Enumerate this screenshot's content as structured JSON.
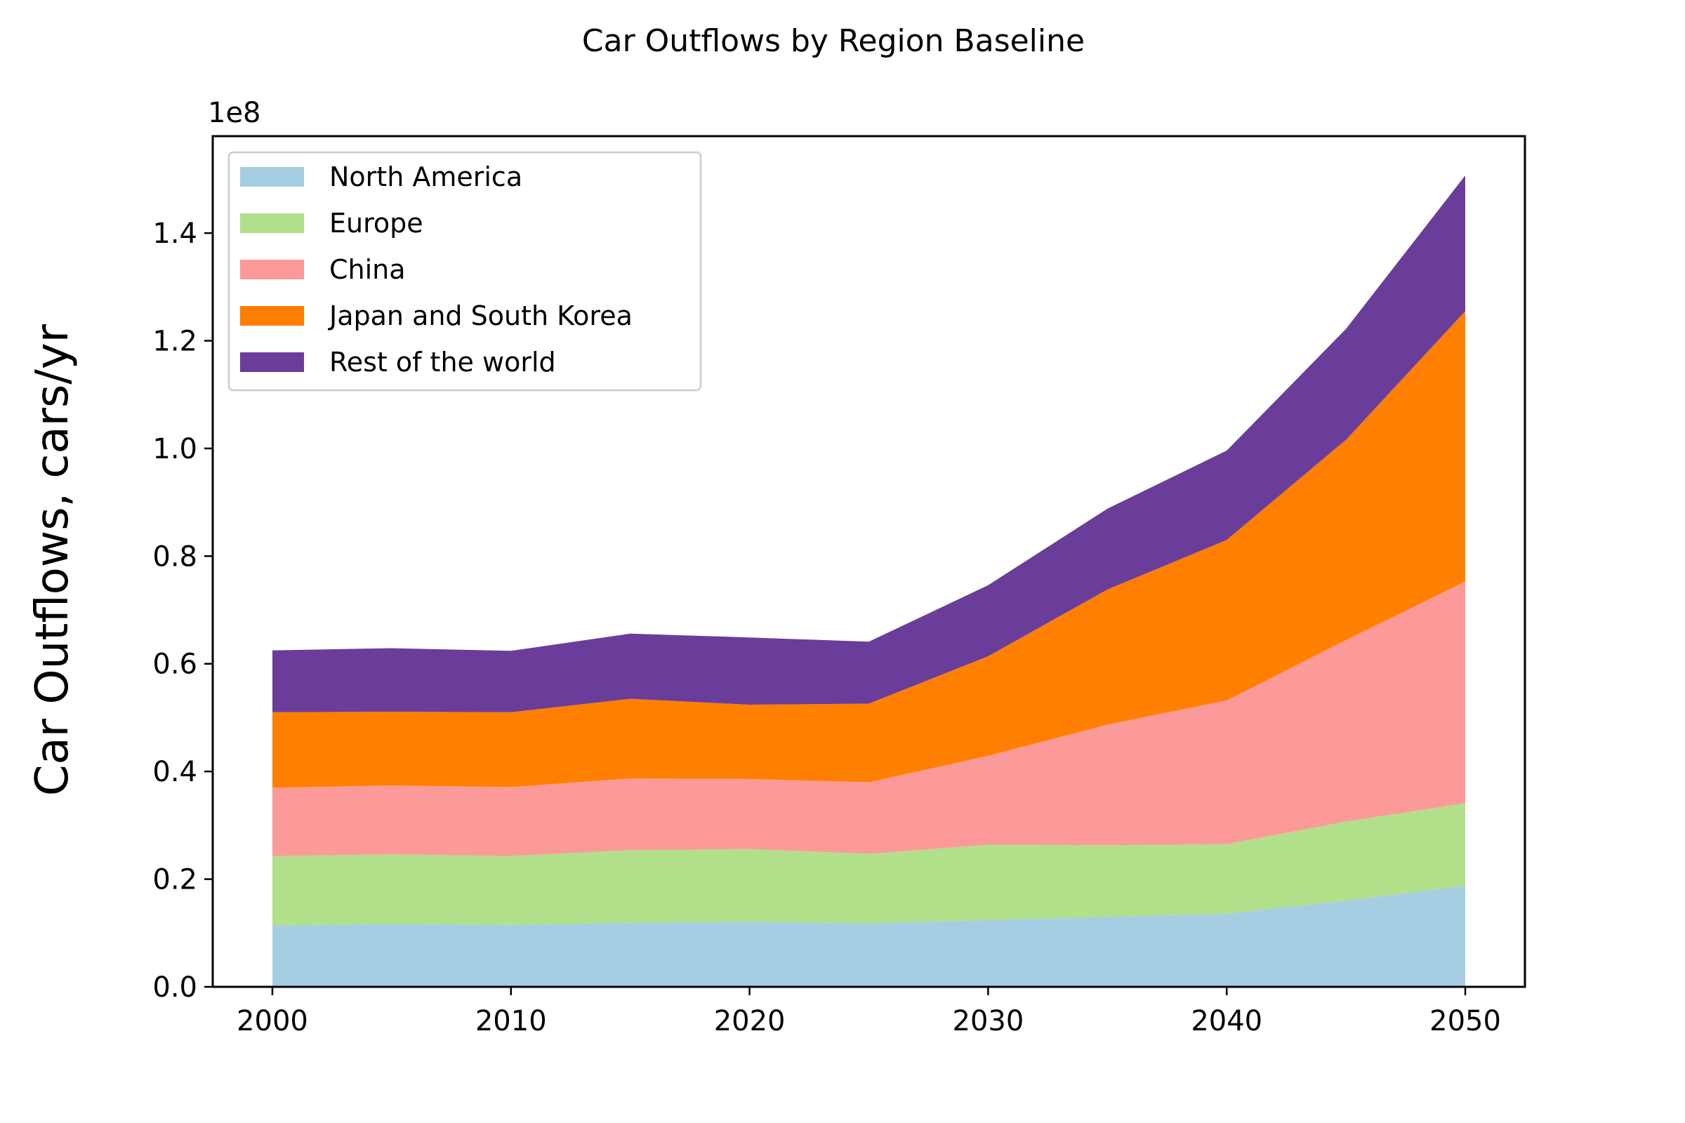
{
  "chart_data": {
    "type": "area",
    "stacked": true,
    "title": "Car Outflows by Region Baseline",
    "xlabel": "",
    "ylabel": "Car Outflows, cars/yr",
    "y_offset_label": "1e8",
    "xlim": [
      1997.5,
      2052.5
    ],
    "ylim": [
      0,
      1.58
    ],
    "x_ticks": [
      2000,
      2010,
      2020,
      2030,
      2040,
      2050
    ],
    "x_tick_labels": [
      "2000",
      "2010",
      "2020",
      "2030",
      "2040",
      "2050"
    ],
    "y_ticks": [
      0,
      0.2,
      0.4,
      0.6,
      0.8,
      1.0,
      1.2,
      1.4
    ],
    "y_tick_labels": [
      "0.0",
      "0.2",
      "0.4",
      "0.6",
      "0.8",
      "1.0",
      "1.2",
      "1.4"
    ],
    "legend_position": "top-left",
    "x": [
      2000,
      2005,
      2010,
      2015,
      2020,
      2025,
      2030,
      2035,
      2040,
      2045,
      2050
    ],
    "series": [
      {
        "name": "North America",
        "color": "#a6cee3",
        "values": [
          0.114,
          0.117,
          0.115,
          0.119,
          0.121,
          0.118,
          0.124,
          0.13,
          0.136,
          0.16,
          0.188
        ]
      },
      {
        "name": "Europe",
        "color": "#b2df8a",
        "values": [
          0.129,
          0.129,
          0.128,
          0.135,
          0.135,
          0.129,
          0.14,
          0.133,
          0.129,
          0.147,
          0.153
        ]
      },
      {
        "name": "China",
        "color": "#fb9a99",
        "values": [
          0.127,
          0.128,
          0.128,
          0.133,
          0.13,
          0.133,
          0.165,
          0.224,
          0.267,
          0.337,
          0.412
        ]
      },
      {
        "name": "Japan and South Korea",
        "color": "#ff7f00",
        "values": [
          0.14,
          0.137,
          0.139,
          0.148,
          0.138,
          0.146,
          0.185,
          0.251,
          0.298,
          0.372,
          0.502
        ]
      },
      {
        "name": "Rest of the world",
        "color": "#6a3d9a",
        "values": [
          0.115,
          0.118,
          0.114,
          0.121,
          0.125,
          0.115,
          0.132,
          0.15,
          0.166,
          0.206,
          0.252
        ]
      }
    ]
  }
}
